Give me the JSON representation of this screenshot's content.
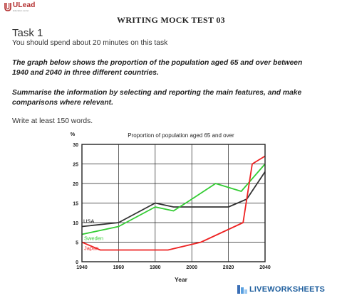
{
  "brand": {
    "name": "ULead",
    "tagline": "Education center"
  },
  "header": {
    "test_title": "WRITING MOCK TEST 03"
  },
  "task": {
    "title": "Task 1",
    "time_note": "You should spend about 20 minutes on this task",
    "prompt_line1": "The graph below shows the proportion of the population aged 65 and over between",
    "prompt_line2": "1940 and 2040 in three different countries.",
    "instruction_line1": "Summarise the information by selecting and reporting the main features, and make",
    "instruction_line2": "comparisons where relevant.",
    "word_count": "Write at least 150 words."
  },
  "chart_data": {
    "type": "line",
    "title": "Proportion of population aged 65 and over",
    "xlabel": "Year",
    "ylabel": "%",
    "xlim": [
      1940,
      2040
    ],
    "ylim": [
      0,
      30
    ],
    "x_ticks": [
      1940,
      1960,
      1980,
      2000,
      2020,
      2040
    ],
    "y_ticks": [
      0,
      5,
      10,
      15,
      20,
      25,
      30
    ],
    "series": [
      {
        "name": "USA",
        "color": "#333333",
        "points": [
          [
            1940,
            9
          ],
          [
            1960,
            10
          ],
          [
            1980,
            15
          ],
          [
            1990,
            14
          ],
          [
            2000,
            14
          ],
          [
            2020,
            14
          ],
          [
            2030,
            16
          ],
          [
            2040,
            23
          ]
        ]
      },
      {
        "name": "Sweden",
        "color": "#33cc33",
        "points": [
          [
            1940,
            7
          ],
          [
            1960,
            9
          ],
          [
            1980,
            14
          ],
          [
            1990,
            13
          ],
          [
            2000,
            16
          ],
          [
            2013,
            20
          ],
          [
            2027,
            18
          ],
          [
            2040,
            25
          ]
        ]
      },
      {
        "name": "Japan",
        "color": "#ee2222",
        "points": [
          [
            1940,
            5
          ],
          [
            1950,
            3
          ],
          [
            1965,
            3
          ],
          [
            1987,
            3
          ],
          [
            2005,
            5
          ],
          [
            2028,
            10
          ],
          [
            2033,
            25
          ],
          [
            2040,
            27
          ]
        ]
      }
    ]
  },
  "footer": {
    "brand": "LIVEWORKSHEETS"
  }
}
